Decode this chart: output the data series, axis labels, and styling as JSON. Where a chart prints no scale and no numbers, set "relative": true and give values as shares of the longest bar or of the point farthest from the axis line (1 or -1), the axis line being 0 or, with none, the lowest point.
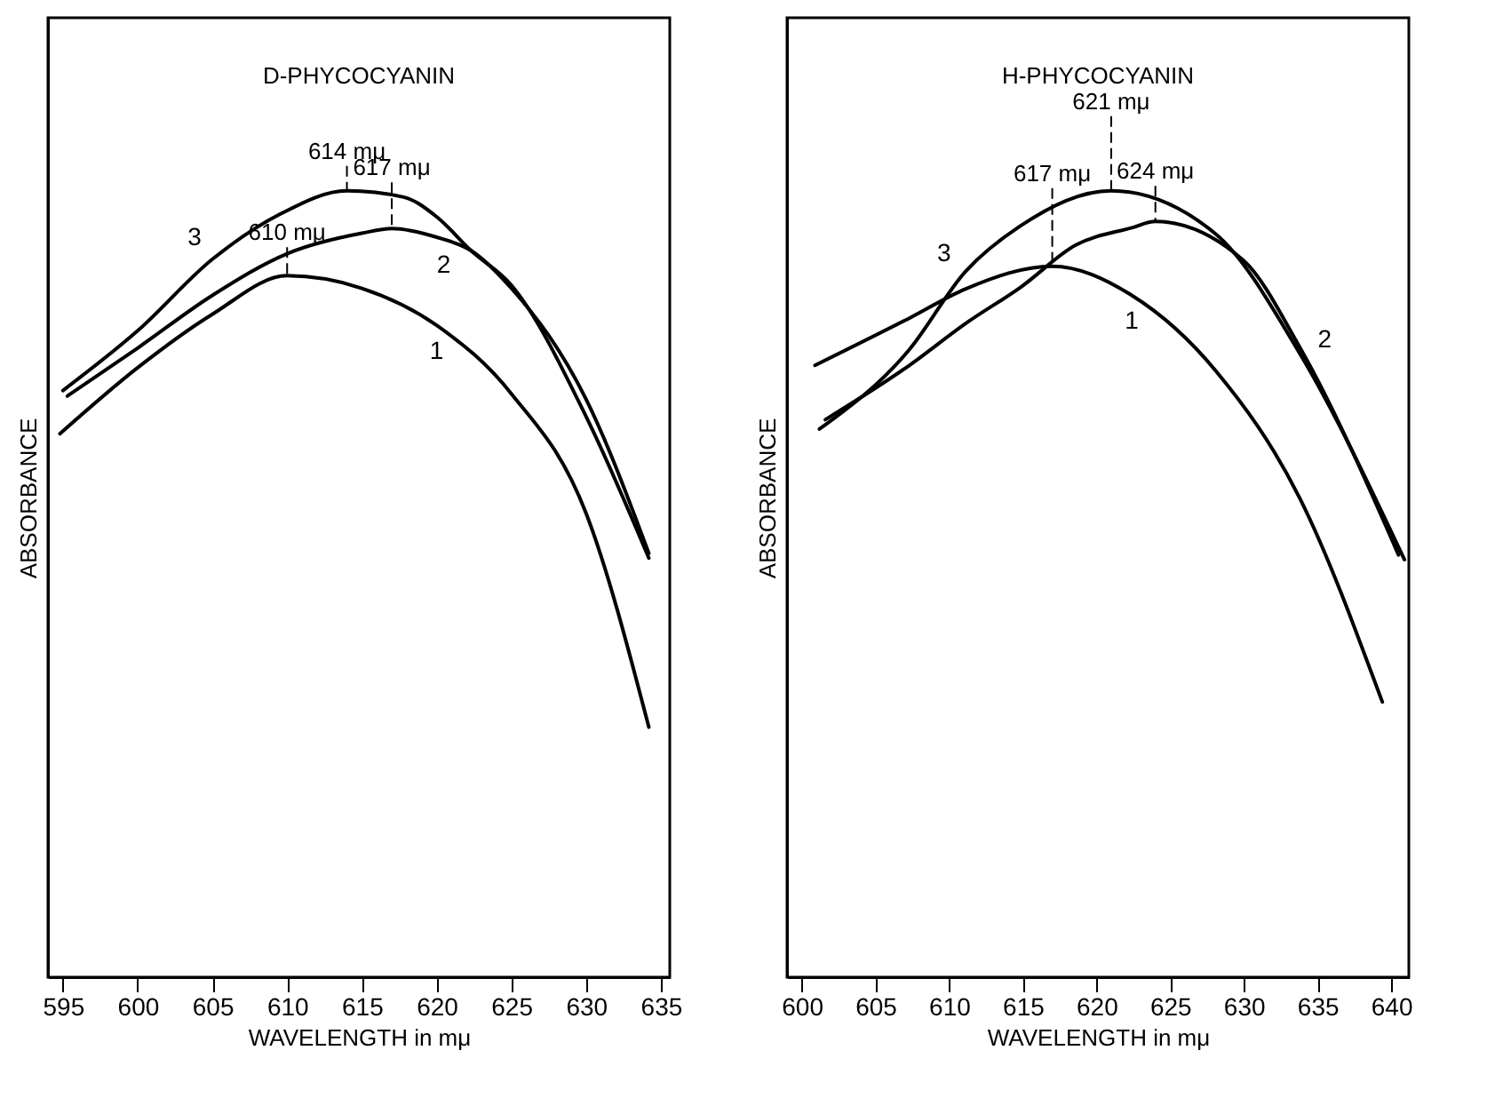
{
  "chart_data": [
    {
      "type": "line",
      "title": "D-PHYCOCYANIN",
      "xlabel": "WAVELENGTH in mμ",
      "ylabel": "ABSORBANCE",
      "relative": true,
      "xlim": [
        594,
        635.6
      ],
      "xticks": [
        595,
        600,
        605,
        610,
        615,
        620,
        625,
        630,
        635
      ],
      "grid": false,
      "legend": false,
      "marker": "none",
      "line_style": "solid",
      "series": [
        {
          "name": "1",
          "color": "#000000",
          "x": [
            594.8,
            600,
            605,
            610,
            615,
            620,
            625,
            630,
            634.2
          ],
          "values": [
            0.691,
            0.775,
            0.843,
            0.892,
            0.876,
            0.829,
            0.742,
            0.59,
            0.318
          ]
        },
        {
          "name": "2",
          "color": "#000000",
          "x": [
            595.3,
            600,
            605,
            610,
            615,
            617,
            620,
            622.3,
            625,
            630,
            634.2
          ],
          "values": [
            0.739,
            0.8,
            0.867,
            0.92,
            0.946,
            0.952,
            0.941,
            0.924,
            0.876,
            0.735,
            0.539
          ]
        },
        {
          "name": "3",
          "color": "#000000",
          "x": [
            595,
            600,
            605,
            609.5,
            614,
            617.8,
            620,
            622.3,
            625,
            630,
            634.2
          ],
          "values": [
            0.746,
            0.822,
            0.913,
            0.97,
            1,
            0.992,
            0.967,
            0.924,
            0.88,
            0.713,
            0.533
          ]
        }
      ],
      "annotations": [
        {
          "text": "610 mμ",
          "x": 610,
          "y": 0.892
        },
        {
          "text": "614 mμ",
          "x": 614,
          "y": 1
        },
        {
          "text": "617 mμ",
          "x": 617,
          "y": 0.952
        }
      ]
    },
    {
      "type": "line",
      "title": "H-PHYCOCYANIN",
      "xlabel": "WAVELENGTH in mμ",
      "ylabel": "ABSORBANCE",
      "relative": true,
      "xlim": [
        599,
        641.2
      ],
      "xticks": [
        600,
        605,
        610,
        615,
        620,
        625,
        630,
        635,
        640
      ],
      "grid": false,
      "legend": false,
      "marker": "none",
      "line_style": "solid",
      "series": [
        {
          "name": "1",
          "color": "#000000",
          "x": [
            600.9,
            607.3,
            611.1,
            617,
            622.4,
            628.1,
            633.8,
            639.4
          ],
          "values": [
            0.778,
            0.838,
            0.875,
            0.904,
            0.867,
            0.771,
            0.609,
            0.35
          ]
        },
        {
          "name": "2",
          "color": "#000000",
          "x": [
            601.6,
            607.3,
            611.1,
            614.9,
            618.6,
            622.4,
            624,
            630,
            633.8,
            640.5
          ],
          "values": [
            0.709,
            0.778,
            0.831,
            0.878,
            0.931,
            0.953,
            0.961,
            0.911,
            0.801,
            0.537
          ]
        },
        {
          "name": "3",
          "color": "#000000",
          "x": [
            601.2,
            607.3,
            611.1,
            614.9,
            621,
            628.1,
            633.8,
            640.9
          ],
          "values": [
            0.697,
            0.798,
            0.897,
            0.956,
            1,
            0.945,
            0.793,
            0.531
          ]
        }
      ],
      "annotations": [
        {
          "text": "617 mμ",
          "x": 617,
          "y": 0.904
        },
        {
          "text": "621 mμ",
          "x": 621,
          "y": 1
        },
        {
          "text": "624 mμ",
          "x": 624,
          "y": 0.961
        }
      ]
    }
  ]
}
